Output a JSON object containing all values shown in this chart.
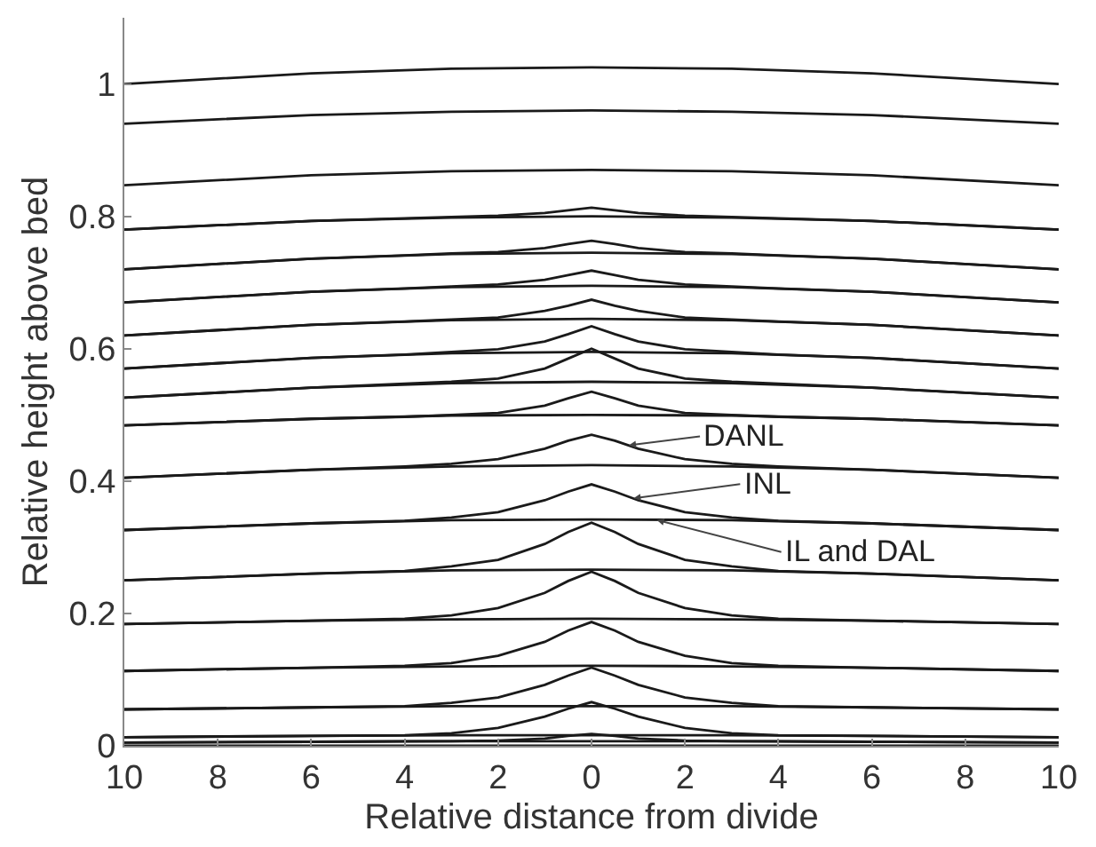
{
  "chart_data": {
    "type": "line",
    "xlabel": "Relative distance from divide",
    "ylabel": "Relative height above bed",
    "xlim": [
      -10,
      10
    ],
    "ylim": [
      0,
      1.1
    ],
    "xticks": [
      {
        "value": -10,
        "label": "10"
      },
      {
        "value": -8,
        "label": "8"
      },
      {
        "value": -6,
        "label": "6"
      },
      {
        "value": -4,
        "label": "4"
      },
      {
        "value": -2,
        "label": "2"
      },
      0,
      2,
      4,
      6,
      8,
      10
    ],
    "yticks": [
      0,
      0.2,
      0.4,
      0.6,
      0.8,
      1
    ],
    "grid": false,
    "marker": "none",
    "line_style": "solid",
    "annotations": [
      {
        "text": "DANL",
        "x": 0.8,
        "y": 0.454
      },
      {
        "text": "INL",
        "x": 0.9,
        "y": 0.374
      },
      {
        "text": "IL and DAL",
        "x": 1.4,
        "y": 0.341
      }
    ],
    "series": [
      {
        "color": "#1a1a1a",
        "x": [
          -10,
          -6,
          -3,
          0,
          3,
          6,
          10
        ],
        "values": [
          1.0,
          1.016,
          1.023,
          1.025,
          1.023,
          1.016,
          1.0
        ]
      },
      {
        "color": "#1a1a1a",
        "x": [
          -10,
          -6,
          -3,
          0,
          3,
          6,
          10
        ],
        "values": [
          0.94,
          0.953,
          0.958,
          0.96,
          0.958,
          0.953,
          0.94
        ]
      },
      {
        "color": "#1a1a1a",
        "x": [
          -10,
          -6,
          -3,
          0,
          3,
          6,
          10
        ],
        "values": [
          0.847,
          0.862,
          0.868,
          0.87,
          0.868,
          0.862,
          0.847
        ]
      },
      {
        "color": "#1a1a1a",
        "x": [
          -10,
          -6,
          -3,
          0,
          3,
          6,
          10
        ],
        "values": [
          0.78,
          0.793,
          0.798,
          0.8,
          0.798,
          0.793,
          0.78
        ]
      },
      {
        "color": "#1a1a1a",
        "x": [
          -10,
          -6,
          -3,
          0,
          3,
          6,
          10
        ],
        "values": [
          0.72,
          0.736,
          0.743,
          0.745,
          0.743,
          0.736,
          0.72
        ]
      },
      {
        "color": "#1a1a1a",
        "x": [
          -10,
          -6,
          -3,
          0,
          3,
          6,
          10
        ],
        "values": [
          0.67,
          0.686,
          0.693,
          0.695,
          0.693,
          0.686,
          0.67
        ]
      },
      {
        "color": "#1a1a1a",
        "x": [
          -10,
          -6,
          -3,
          0,
          3,
          6,
          10
        ],
        "values": [
          0.62,
          0.636,
          0.643,
          0.645,
          0.643,
          0.636,
          0.62
        ]
      },
      {
        "color": "#1a1a1a",
        "x": [
          -10,
          -6,
          -3,
          0,
          3,
          6,
          10
        ],
        "values": [
          0.57,
          0.586,
          0.593,
          0.595,
          0.593,
          0.586,
          0.57
        ]
      },
      {
        "color": "#1a1a1a",
        "x": [
          -10,
          -6,
          -3,
          0,
          3,
          6,
          10
        ],
        "values": [
          0.526,
          0.541,
          0.548,
          0.55,
          0.548,
          0.541,
          0.526
        ]
      },
      {
        "color": "#1a1a1a",
        "x": [
          -10,
          -6,
          -3,
          0,
          3,
          6,
          10
        ],
        "values": [
          0.484,
          0.494,
          0.499,
          0.5,
          0.499,
          0.494,
          0.484
        ]
      },
      {
        "color": "#1a1a1a",
        "x": [
          -10,
          -6,
          -3,
          0,
          3,
          6,
          10
        ],
        "values": [
          0.405,
          0.417,
          0.422,
          0.424,
          0.422,
          0.417,
          0.405
        ]
      },
      {
        "color": "#1a1a1a",
        "x": [
          -10,
          -6,
          -3,
          0,
          3,
          6,
          10
        ],
        "values": [
          0.326,
          0.336,
          0.341,
          0.342,
          0.341,
          0.336,
          0.326
        ]
      },
      {
        "color": "#1a1a1a",
        "x": [
          -10,
          -6,
          -3,
          0,
          3,
          6,
          10
        ],
        "values": [
          0.25,
          0.26,
          0.265,
          0.266,
          0.265,
          0.26,
          0.25
        ]
      },
      {
        "color": "#1a1a1a",
        "x": [
          -10,
          -6,
          -3,
          0,
          3,
          6,
          10
        ],
        "values": [
          0.184,
          0.189,
          0.191,
          0.192,
          0.191,
          0.189,
          0.184
        ]
      },
      {
        "color": "#1a1a1a",
        "x": [
          -10,
          -6,
          -3,
          0,
          3,
          6,
          10
        ],
        "values": [
          0.113,
          0.118,
          0.12,
          0.121,
          0.12,
          0.118,
          0.113
        ]
      },
      {
        "color": "#1a1a1a",
        "x": [
          -10,
          -6,
          -3,
          0,
          3,
          6,
          10
        ],
        "values": [
          0.055,
          0.058,
          0.06,
          0.06,
          0.06,
          0.058,
          0.055
        ]
      },
      {
        "color": "#1a1a1a",
        "x": [
          -10,
          -6,
          -3,
          0,
          3,
          6,
          10
        ],
        "values": [
          0.013,
          0.015,
          0.016,
          0.016,
          0.016,
          0.015,
          0.013
        ]
      },
      {
        "color": "#1a1a1a",
        "x": [
          -10,
          -6,
          -3,
          0,
          3,
          6,
          10
        ],
        "values": [
          0.005,
          0.006,
          0.007,
          0.007,
          0.007,
          0.006,
          0.005
        ]
      },
      {
        "color": "#1a1a1a",
        "x": [
          -10,
          -6,
          -3,
          0,
          3,
          6,
          10
        ],
        "values": [
          0,
          0,
          0,
          0,
          0,
          0,
          0
        ]
      },
      {
        "color": "#1a1a1a",
        "x": [
          -10,
          -6,
          -4,
          -3,
          -2,
          -1,
          -0.5,
          0,
          0.5,
          1,
          2,
          3,
          4,
          6,
          10
        ],
        "values": [
          0.78,
          0.793,
          0.797,
          0.799,
          0.801,
          0.805,
          0.809,
          0.813,
          0.809,
          0.805,
          0.801,
          0.799,
          0.797,
          0.793,
          0.78
        ]
      },
      {
        "color": "#1a1a1a",
        "x": [
          -10,
          -6,
          -4,
          -3,
          -2,
          -1,
          -0.5,
          0,
          0.5,
          1,
          2,
          3,
          4,
          6,
          10
        ],
        "values": [
          0.72,
          0.736,
          0.741,
          0.744,
          0.746,
          0.752,
          0.758,
          0.763,
          0.758,
          0.752,
          0.746,
          0.744,
          0.741,
          0.736,
          0.72
        ]
      },
      {
        "color": "#1a1a1a",
        "x": [
          -10,
          -6,
          -4,
          -3,
          -2,
          -1,
          -0.5,
          0,
          0.5,
          1,
          2,
          3,
          4,
          6,
          10
        ],
        "values": [
          0.67,
          0.686,
          0.691,
          0.694,
          0.697,
          0.704,
          0.711,
          0.718,
          0.711,
          0.704,
          0.697,
          0.694,
          0.691,
          0.686,
          0.67
        ]
      },
      {
        "color": "#1a1a1a",
        "x": [
          -10,
          -6,
          -4,
          -3,
          -2,
          -1,
          -0.5,
          0,
          0.5,
          1,
          2,
          3,
          4,
          6,
          10
        ],
        "values": [
          0.62,
          0.636,
          0.641,
          0.644,
          0.647,
          0.657,
          0.665,
          0.674,
          0.665,
          0.657,
          0.647,
          0.644,
          0.641,
          0.636,
          0.62
        ]
      },
      {
        "color": "#1a1a1a",
        "x": [
          -10,
          -6,
          -4,
          -3,
          -2,
          -1,
          -0.5,
          0,
          0.5,
          1,
          2,
          3,
          4,
          6,
          10
        ],
        "values": [
          0.57,
          0.586,
          0.591,
          0.595,
          0.599,
          0.611,
          0.622,
          0.634,
          0.622,
          0.611,
          0.599,
          0.595,
          0.591,
          0.586,
          0.57
        ]
      },
      {
        "color": "#1a1a1a",
        "x": [
          -10,
          -6,
          -4,
          -3,
          -2,
          -1,
          -0.5,
          0,
          0.5,
          1,
          2,
          3,
          4,
          6,
          10
        ],
        "values": [
          0.526,
          0.541,
          0.547,
          0.55,
          0.555,
          0.57,
          0.585,
          0.6,
          0.585,
          0.57,
          0.555,
          0.55,
          0.547,
          0.541,
          0.526
        ]
      },
      {
        "color": "#1a1a1a",
        "x": [
          -10,
          -6,
          -4,
          -3,
          -2,
          -1,
          -0.5,
          0,
          0.5,
          1,
          2,
          3,
          4,
          6,
          10
        ],
        "values": [
          0.484,
          0.494,
          0.497,
          0.5,
          0.503,
          0.514,
          0.525,
          0.535,
          0.525,
          0.514,
          0.503,
          0.5,
          0.497,
          0.494,
          0.484
        ]
      },
      {
        "color": "#1a1a1a",
        "x": [
          -10,
          -6,
          -4,
          -3,
          -2,
          -1,
          -0.5,
          0,
          0.5,
          1,
          2,
          3,
          4,
          6,
          10
        ],
        "values": [
          0.405,
          0.417,
          0.422,
          0.426,
          0.433,
          0.449,
          0.461,
          0.47,
          0.461,
          0.449,
          0.433,
          0.426,
          0.422,
          0.417,
          0.405
        ]
      },
      {
        "color": "#1a1a1a",
        "x": [
          -10,
          -6,
          -4,
          -3,
          -2,
          -1,
          -0.5,
          0,
          0.5,
          1,
          2,
          3,
          4,
          6,
          10
        ],
        "values": [
          0.326,
          0.336,
          0.34,
          0.345,
          0.353,
          0.371,
          0.384,
          0.395,
          0.384,
          0.371,
          0.353,
          0.345,
          0.34,
          0.336,
          0.326
        ]
      },
      {
        "color": "#1a1a1a",
        "x": [
          -10,
          -6,
          -4,
          -3,
          -2,
          -1,
          -0.5,
          0,
          0.5,
          1,
          2,
          3,
          4,
          6,
          10
        ],
        "values": [
          0.25,
          0.26,
          0.264,
          0.271,
          0.281,
          0.305,
          0.323,
          0.337,
          0.323,
          0.305,
          0.281,
          0.271,
          0.264,
          0.26,
          0.25
        ]
      },
      {
        "color": "#1a1a1a",
        "x": [
          -10,
          -6,
          -4,
          -3,
          -2,
          -1,
          -0.5,
          0,
          0.5,
          1,
          2,
          3,
          4,
          6,
          10
        ],
        "values": [
          0.184,
          0.189,
          0.192,
          0.197,
          0.208,
          0.231,
          0.249,
          0.263,
          0.249,
          0.231,
          0.208,
          0.197,
          0.192,
          0.189,
          0.184
        ]
      },
      {
        "color": "#1a1a1a",
        "x": [
          -10,
          -6,
          -4,
          -3,
          -2,
          -1,
          -0.5,
          0,
          0.5,
          1,
          2,
          3,
          4,
          6,
          10
        ],
        "values": [
          0.113,
          0.118,
          0.121,
          0.125,
          0.136,
          0.157,
          0.174,
          0.187,
          0.174,
          0.157,
          0.136,
          0.125,
          0.121,
          0.118,
          0.113
        ]
      },
      {
        "color": "#1a1a1a",
        "x": [
          -10,
          -6,
          -4,
          -3,
          -2,
          -1,
          -0.5,
          0,
          0.5,
          1,
          2,
          3,
          4,
          6,
          10
        ],
        "values": [
          0.055,
          0.058,
          0.06,
          0.065,
          0.073,
          0.092,
          0.106,
          0.118,
          0.106,
          0.092,
          0.073,
          0.065,
          0.06,
          0.058,
          0.055
        ]
      },
      {
        "color": "#1a1a1a",
        "x": [
          -10,
          -6,
          -4,
          -3,
          -2,
          -1,
          -0.5,
          0,
          0.5,
          1,
          2,
          3,
          4,
          6,
          10
        ],
        "values": [
          0.013,
          0.015,
          0.016,
          0.019,
          0.027,
          0.044,
          0.056,
          0.066,
          0.056,
          0.044,
          0.027,
          0.019,
          0.016,
          0.015,
          0.013
        ]
      },
      {
        "color": "#1a1a1a",
        "x": [
          -10,
          -6,
          -4,
          -3,
          -2,
          -1,
          -0.5,
          0,
          0.5,
          1,
          2,
          3,
          4,
          6,
          10
        ],
        "values": [
          0.005,
          0.006,
          0.007,
          0.007,
          0.008,
          0.011,
          0.015,
          0.018,
          0.015,
          0.011,
          0.008,
          0.007,
          0.007,
          0.006,
          0.005
        ]
      }
    ]
  }
}
